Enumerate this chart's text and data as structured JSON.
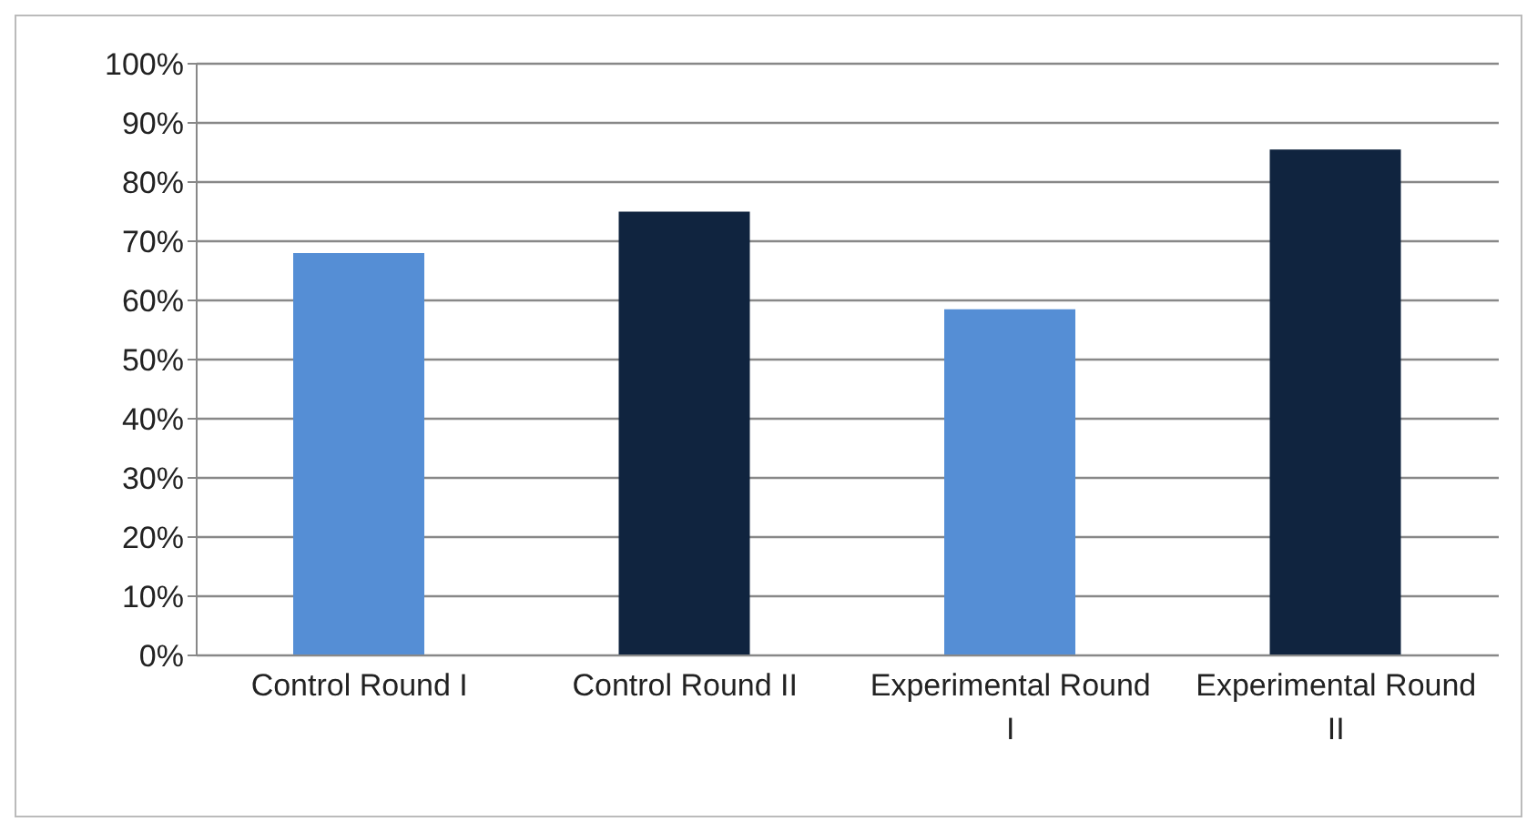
{
  "chart_data": {
    "type": "bar",
    "categories": [
      "Control Round I",
      "Control Round II",
      "Experimental Round I",
      "Experimental Round II"
    ],
    "values": [
      68,
      75,
      58.5,
      85.5
    ],
    "colors": [
      "#558ed5",
      "#10243f",
      "#558ed5",
      "#10243f"
    ],
    "ylim": [
      0,
      100
    ],
    "yticks": [
      {
        "value": 0,
        "label": "0%"
      },
      {
        "value": 10,
        "label": "10%"
      },
      {
        "value": 20,
        "label": "20%"
      },
      {
        "value": 30,
        "label": "30%"
      },
      {
        "value": 40,
        "label": "40%"
      },
      {
        "value": 50,
        "label": "50%"
      },
      {
        "value": 60,
        "label": "60%"
      },
      {
        "value": 70,
        "label": "70%"
      },
      {
        "value": 80,
        "label": "80%"
      },
      {
        "value": 90,
        "label": "90%"
      },
      {
        "value": 100,
        "label": "100%"
      }
    ],
    "grid": "y"
  }
}
